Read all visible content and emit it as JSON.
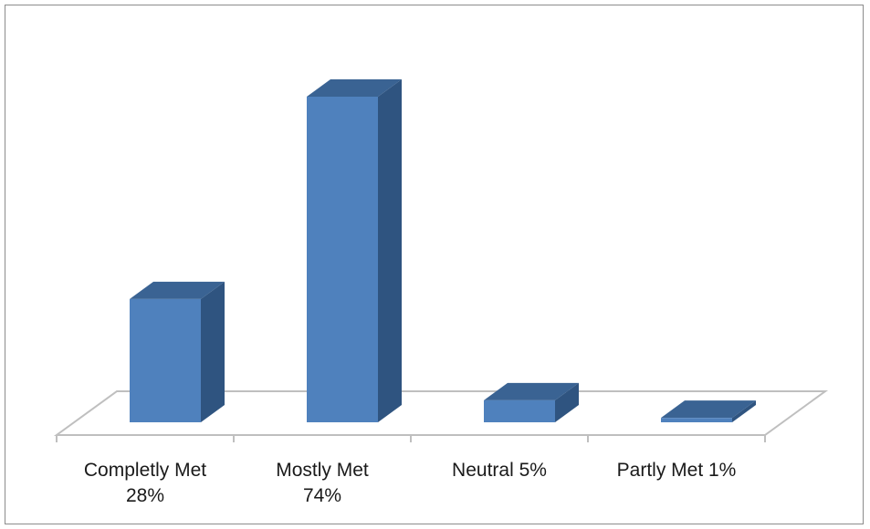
{
  "chart_data": {
    "type": "bar",
    "style": "3d-column",
    "categories": [
      "Completly Met 28%",
      "Mostly Met 74%",
      "Neutral 5%",
      "Partly Met 1%"
    ],
    "category_label_lines": [
      [
        "Completly Met",
        "28%"
      ],
      [
        "Mostly Met",
        "74%"
      ],
      [
        "Neutral 5%"
      ],
      [
        "Partly Met 1%"
      ]
    ],
    "values": [
      28,
      74,
      5,
      1
    ],
    "grid": false,
    "legend": "none",
    "colors": {
      "front": "#4f81bd",
      "top": "#3a6393",
      "side": "#2f5480",
      "floor": "#bfbfbf"
    }
  }
}
